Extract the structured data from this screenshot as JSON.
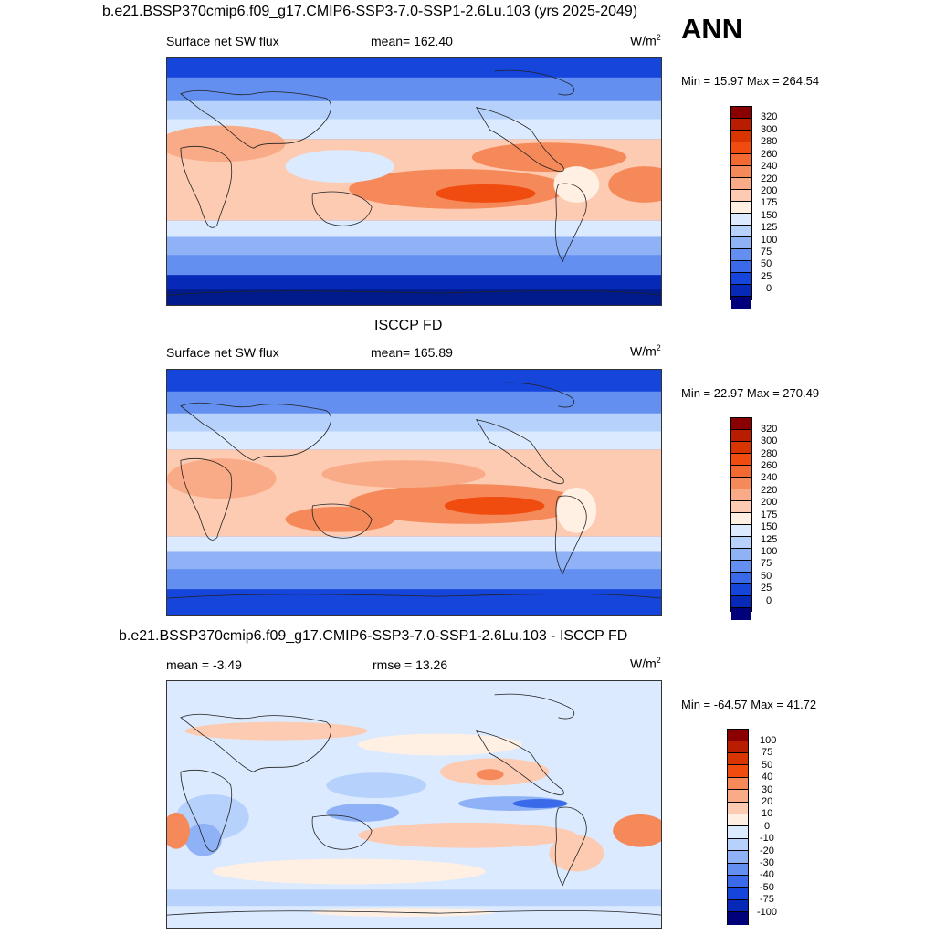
{
  "season": "ANN",
  "panels": [
    {
      "title": "b.e21.BSSP370cmip6.f09_g17.CMIP6-SSP3-7.0-SSP1-2.6Lu.103 (yrs 2025-2049)",
      "left_label": "Surface net SW flux",
      "center_label": "mean= 162.40",
      "units": "W/m",
      "units_sup": "2",
      "minmax": "Min =  15.97 Max = 264.54",
      "colorbar_labels": [
        "320",
        "300",
        "280",
        "260",
        "240",
        "220",
        "200",
        "175",
        "150",
        "125",
        "100",
        "75",
        "50",
        "25",
        "0"
      ],
      "colors": [
        "#8a0000",
        "#b81d00",
        "#d83500",
        "#f04c10",
        "#f26a32",
        "#f6895a",
        "#f9aa86",
        "#fccbb1",
        "#fff0e3",
        "#dbeaff",
        "#b6d1fb",
        "#8fb2f7",
        "#628ff0",
        "#3a6ae9",
        "#1645dc",
        "#0629b8",
        "#011a8c",
        "#00007a"
      ],
      "colors_note": "18-step diverging palette used for bands"
    },
    {
      "title": "ISCCP FD",
      "left_label": "Surface net SW flux",
      "center_label": "mean= 165.89",
      "units": "W/m",
      "units_sup": "2",
      "minmax": "Min =  22.97 Max = 270.49",
      "colorbar_labels": [
        "320",
        "300",
        "280",
        "260",
        "240",
        "220",
        "200",
        "175",
        "150",
        "125",
        "100",
        "75",
        "50",
        "25",
        "0"
      ]
    },
    {
      "title": "b.e21.BSSP370cmip6.f09_g17.CMIP6-SSP3-7.0-SSP1-2.6Lu.103 - ISCCP FD",
      "left_label": "mean =  -3.49",
      "center_label": "rmse =  13.26",
      "units": "W/m",
      "units_sup": "2",
      "minmax": "Min = -64.57 Max =  41.72",
      "colorbar_labels": [
        "100",
        "75",
        "50",
        "40",
        "30",
        "20",
        "10",
        "0",
        "-10",
        "-20",
        "-30",
        "-40",
        "-50",
        "-75",
        "-100"
      ]
    }
  ]
}
